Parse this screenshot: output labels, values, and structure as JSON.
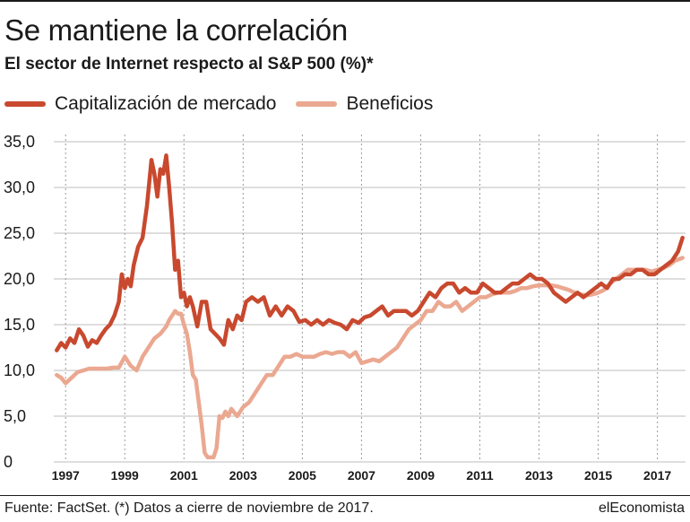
{
  "header": {
    "title": "Se mantiene la correlación",
    "subtitle": "El sector de Internet respecto al S&P 500 (%)*"
  },
  "legend": [
    {
      "label": "Capitalización de mercado",
      "color": "#c8492e"
    },
    {
      "label": "Beneficios",
      "color": "#eba891"
    }
  ],
  "footer": {
    "source": "Fuente: FactSet. (*) Datos a cierre de noviembre de 2017.",
    "brand": "elEconomista"
  },
  "chart_data": {
    "type": "line",
    "title": "Se mantiene la correlación",
    "subtitle": "El sector de Internet respecto al S&P 500 (%)*",
    "xlabel": "",
    "ylabel": "",
    "xlim": [
      1996.6,
      2017.95
    ],
    "ylim": [
      0,
      35
    ],
    "yticks": [
      0,
      5,
      10,
      15,
      20,
      25,
      30,
      35
    ],
    "ytick_labels": [
      "0",
      "5,0",
      "10,0",
      "15,0",
      "20,0",
      "25,0",
      "30,0",
      "35,0"
    ],
    "xticks": [
      1997,
      1999,
      2001,
      2003,
      2005,
      2007,
      2009,
      2011,
      2013,
      2015,
      2017
    ],
    "xtick_labels": [
      "1997",
      "1999",
      "2001",
      "2003",
      "2005",
      "2007",
      "2009",
      "2011",
      "2013",
      "2015",
      "2017"
    ],
    "grid": "vertical dotted at x ticks, horizontal solid at y ticks",
    "legend_position": "top-left",
    "series": [
      {
        "name": "Capitalización de mercado",
        "color": "#c8492e",
        "x": [
          1996.7,
          1996.85,
          1997.0,
          1997.15,
          1997.3,
          1997.45,
          1997.6,
          1997.75,
          1997.9,
          1998.05,
          1998.2,
          1998.35,
          1998.5,
          1998.65,
          1998.8,
          1998.9,
          1999.0,
          1999.1,
          1999.2,
          1999.3,
          1999.45,
          1999.6,
          1999.75,
          1999.9,
          2000.0,
          2000.1,
          2000.2,
          2000.3,
          2000.4,
          2000.5,
          2000.6,
          2000.7,
          2000.8,
          2000.9,
          2001.0,
          2001.1,
          2001.2,
          2001.3,
          2001.45,
          2001.6,
          2001.75,
          2001.9,
          2002.05,
          2002.2,
          2002.35,
          2002.5,
          2002.65,
          2002.8,
          2002.95,
          2003.1,
          2003.3,
          2003.5,
          2003.7,
          2003.9,
          2004.1,
          2004.3,
          2004.5,
          2004.7,
          2004.9,
          2005.1,
          2005.3,
          2005.5,
          2005.7,
          2005.9,
          2006.1,
          2006.3,
          2006.5,
          2006.7,
          2006.9,
          2007.1,
          2007.3,
          2007.5,
          2007.7,
          2007.9,
          2008.1,
          2008.3,
          2008.5,
          2008.7,
          2008.9,
          2009.1,
          2009.3,
          2009.5,
          2009.7,
          2009.9,
          2010.1,
          2010.3,
          2010.5,
          2010.7,
          2010.9,
          2011.1,
          2011.3,
          2011.5,
          2011.7,
          2011.9,
          2012.1,
          2012.3,
          2012.5,
          2012.7,
          2012.9,
          2013.1,
          2013.3,
          2013.5,
          2013.7,
          2013.9,
          2014.1,
          2014.3,
          2014.5,
          2014.7,
          2014.9,
          2015.1,
          2015.3,
          2015.5,
          2015.7,
          2015.9,
          2016.1,
          2016.3,
          2016.5,
          2016.7,
          2016.9,
          2017.1,
          2017.3,
          2017.5,
          2017.7,
          2017.85
        ],
        "values": [
          12.2,
          13.0,
          12.5,
          13.5,
          13.0,
          14.5,
          13.8,
          12.6,
          13.3,
          13.0,
          13.8,
          14.5,
          15.0,
          16.0,
          17.5,
          20.5,
          19.0,
          20.0,
          19.2,
          21.5,
          23.5,
          24.5,
          28.0,
          33.0,
          31.5,
          29.0,
          32.0,
          31.5,
          33.5,
          30.0,
          26.0,
          21.0,
          22.0,
          18.0,
          18.5,
          17.0,
          18.0,
          17.0,
          14.8,
          17.5,
          17.5,
          14.5,
          14.0,
          13.5,
          12.8,
          15.5,
          14.5,
          16.0,
          15.5,
          17.5,
          18.0,
          17.5,
          18.0,
          16.0,
          17.0,
          16.0,
          17.0,
          16.5,
          15.3,
          15.5,
          15.0,
          15.5,
          15.0,
          15.5,
          15.2,
          15.0,
          14.5,
          15.5,
          15.2,
          15.8,
          16.0,
          16.5,
          17.0,
          16.0,
          16.5,
          16.5,
          16.5,
          16.0,
          16.5,
          17.5,
          18.5,
          18.0,
          19.0,
          19.5,
          19.5,
          18.5,
          19.0,
          18.5,
          18.5,
          19.5,
          19.0,
          18.5,
          18.5,
          19.0,
          19.5,
          19.5,
          20.0,
          20.5,
          20.0,
          20.0,
          19.5,
          18.5,
          18.0,
          17.5,
          18.0,
          18.5,
          18.0,
          18.5,
          19.0,
          19.5,
          19.0,
          20.0,
          20.0,
          20.5,
          20.5,
          21.0,
          21.0,
          20.5,
          20.5,
          21.0,
          21.5,
          22.0,
          23.0,
          24.5
        ]
      },
      {
        "name": "Beneficios",
        "color": "#eba891",
        "x": [
          1996.7,
          1996.85,
          1997.0,
          1997.2,
          1997.4,
          1997.6,
          1997.8,
          1998.0,
          1998.2,
          1998.4,
          1998.6,
          1998.8,
          1999.0,
          1999.2,
          1999.4,
          1999.6,
          1999.8,
          2000.0,
          2000.2,
          2000.4,
          2000.5,
          2000.6,
          2000.7,
          2000.8,
          2000.9,
          2001.0,
          2001.1,
          2001.2,
          2001.3,
          2001.4,
          2001.5,
          2001.6,
          2001.7,
          2001.8,
          2001.9,
          2002.0,
          2002.1,
          2002.2,
          2002.3,
          2002.4,
          2002.5,
          2002.6,
          2002.8,
          2003.0,
          2003.2,
          2003.4,
          2003.6,
          2003.8,
          2004.0,
          2004.2,
          2004.4,
          2004.6,
          2004.8,
          2005.0,
          2005.2,
          2005.4,
          2005.6,
          2005.8,
          2006.0,
          2006.2,
          2006.4,
          2006.6,
          2006.8,
          2007.0,
          2007.2,
          2007.4,
          2007.6,
          2007.8,
          2008.0,
          2008.2,
          2008.4,
          2008.6,
          2008.8,
          2009.0,
          2009.2,
          2009.4,
          2009.6,
          2009.8,
          2010.0,
          2010.2,
          2010.4,
          2010.6,
          2010.8,
          2011.0,
          2011.2,
          2011.4,
          2011.6,
          2011.8,
          2012.0,
          2012.2,
          2012.4,
          2012.6,
          2012.8,
          2013.0,
          2013.2,
          2013.4,
          2013.6,
          2013.8,
          2014.0,
          2014.2,
          2014.4,
          2014.6,
          2014.8,
          2015.0,
          2015.2,
          2015.4,
          2015.6,
          2015.8,
          2016.0,
          2016.2,
          2016.4,
          2016.6,
          2016.8,
          2017.0,
          2017.2,
          2017.4,
          2017.6,
          2017.85
        ],
        "values": [
          9.5,
          9.2,
          8.6,
          9.2,
          9.8,
          10.0,
          10.2,
          10.2,
          10.2,
          10.2,
          10.3,
          10.3,
          11.5,
          10.5,
          10.0,
          11.5,
          12.5,
          13.5,
          14.0,
          14.8,
          15.5,
          16.0,
          16.5,
          16.2,
          16.2,
          15.0,
          14.0,
          12.0,
          9.5,
          9.0,
          6.5,
          4.0,
          1.0,
          0.5,
          0.5,
          0.5,
          1.5,
          5.0,
          4.8,
          5.5,
          5.0,
          5.8,
          5.0,
          6.0,
          6.5,
          7.5,
          8.5,
          9.5,
          9.5,
          10.5,
          11.5,
          11.5,
          11.8,
          11.5,
          11.5,
          11.5,
          11.8,
          12.0,
          11.8,
          12.0,
          12.0,
          11.5,
          12.0,
          10.8,
          11.0,
          11.2,
          11.0,
          11.5,
          12.0,
          12.5,
          13.5,
          14.5,
          15.0,
          15.5,
          16.5,
          16.5,
          17.5,
          17.0,
          17.0,
          17.5,
          16.5,
          17.0,
          17.5,
          18.0,
          18.0,
          18.3,
          18.5,
          18.5,
          18.5,
          18.7,
          19.0,
          19.0,
          19.2,
          19.3,
          19.3,
          19.3,
          19.2,
          19.0,
          18.8,
          18.5,
          18.3,
          18.2,
          18.3,
          18.5,
          18.8,
          19.5,
          20.0,
          20.5,
          21.0,
          21.0,
          21.0,
          21.0,
          20.8,
          21.0,
          21.2,
          21.5,
          22.0,
          22.3
        ]
      }
    ]
  }
}
